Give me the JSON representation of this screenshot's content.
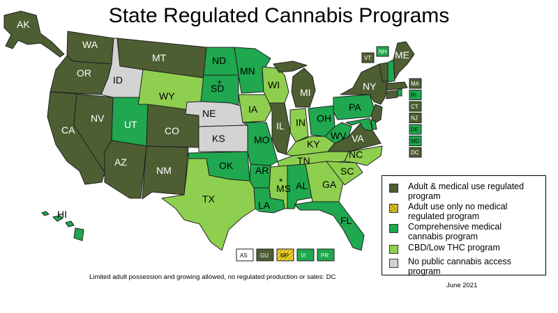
{
  "title": "State Regulated Cannabis Programs",
  "colors": {
    "adult_medical": "#4d5e33",
    "adult_only": "#e6c71e",
    "comprehensive_medical": "#1fa84f",
    "cbd_low_thc": "#8fcf4f",
    "none": "#d3d3d3"
  },
  "legend": [
    {
      "label": "Adult & medical use regulated program",
      "category": "adult_medical"
    },
    {
      "label": "Adult use only no medical regulated program",
      "category": "adult_only"
    },
    {
      "label": "Comprehensive medical cannabis program",
      "category": "comprehensive_medical"
    },
    {
      "label": "CBD/Low THC program",
      "category": "cbd_low_thc"
    },
    {
      "label": "No public cannabis access program",
      "category": "none"
    }
  ],
  "states": [
    {
      "abbr": "AK",
      "category": "adult_medical"
    },
    {
      "abbr": "WA",
      "category": "adult_medical"
    },
    {
      "abbr": "OR",
      "category": "adult_medical"
    },
    {
      "abbr": "CA",
      "category": "adult_medical"
    },
    {
      "abbr": "NV",
      "category": "adult_medical"
    },
    {
      "abbr": "ID",
      "category": "none"
    },
    {
      "abbr": "MT",
      "category": "adult_medical"
    },
    {
      "abbr": "WY",
      "category": "cbd_low_thc"
    },
    {
      "abbr": "UT",
      "category": "comprehensive_medical"
    },
    {
      "abbr": "CO",
      "category": "adult_medical"
    },
    {
      "abbr": "AZ",
      "category": "adult_medical"
    },
    {
      "abbr": "NM",
      "category": "adult_medical"
    },
    {
      "abbr": "ND",
      "category": "comprehensive_medical"
    },
    {
      "abbr": "SD",
      "category": "comprehensive_medical"
    },
    {
      "abbr": "NE",
      "category": "none"
    },
    {
      "abbr": "KS",
      "category": "none"
    },
    {
      "abbr": "OK",
      "category": "comprehensive_medical"
    },
    {
      "abbr": "TX",
      "category": "cbd_low_thc"
    },
    {
      "abbr": "MN",
      "category": "comprehensive_medical"
    },
    {
      "abbr": "IA",
      "category": "cbd_low_thc"
    },
    {
      "abbr": "MO",
      "category": "comprehensive_medical"
    },
    {
      "abbr": "AR",
      "category": "comprehensive_medical"
    },
    {
      "abbr": "LA",
      "category": "comprehensive_medical"
    },
    {
      "abbr": "WI",
      "category": "cbd_low_thc"
    },
    {
      "abbr": "IL",
      "category": "adult_medical"
    },
    {
      "abbr": "MI",
      "category": "adult_medical"
    },
    {
      "abbr": "IN",
      "category": "cbd_low_thc"
    },
    {
      "abbr": "OH",
      "category": "comprehensive_medical"
    },
    {
      "abbr": "KY",
      "category": "cbd_low_thc"
    },
    {
      "abbr": "TN",
      "category": "cbd_low_thc"
    },
    {
      "abbr": "MS",
      "category": "cbd_low_thc"
    },
    {
      "abbr": "AL",
      "category": "comprehensive_medical"
    },
    {
      "abbr": "GA",
      "category": "cbd_low_thc"
    },
    {
      "abbr": "FL",
      "category": "comprehensive_medical"
    },
    {
      "abbr": "SC",
      "category": "cbd_low_thc"
    },
    {
      "abbr": "NC",
      "category": "cbd_low_thc"
    },
    {
      "abbr": "VA",
      "category": "adult_medical"
    },
    {
      "abbr": "WV",
      "category": "comprehensive_medical"
    },
    {
      "abbr": "PA",
      "category": "comprehensive_medical"
    },
    {
      "abbr": "NY",
      "category": "adult_medical"
    },
    {
      "abbr": "VT",
      "category": "adult_medical"
    },
    {
      "abbr": "NH",
      "category": "comprehensive_medical"
    },
    {
      "abbr": "ME",
      "category": "adult_medical"
    },
    {
      "abbr": "HI",
      "category": "comprehensive_medical"
    }
  ],
  "asterisk_states": [
    "SD",
    "MS"
  ],
  "northeast_boxes": [
    {
      "abbr": "MA",
      "category": "adult_medical"
    },
    {
      "abbr": "RI",
      "category": "comprehensive_medical"
    },
    {
      "abbr": "CT",
      "category": "adult_medical"
    },
    {
      "abbr": "NJ",
      "category": "adult_medical"
    },
    {
      "abbr": "DE",
      "category": "comprehensive_medical"
    },
    {
      "abbr": "MD",
      "category": "comprehensive_medical"
    },
    {
      "abbr": "DC",
      "category": "adult_medical"
    }
  ],
  "territories": [
    {
      "abbr": "AS",
      "category": "none_white"
    },
    {
      "abbr": "GU",
      "category": "adult_medical"
    },
    {
      "abbr": "MP",
      "category": "adult_only"
    },
    {
      "abbr": "VI",
      "category": "comprehensive_medical"
    },
    {
      "abbr": "PR",
      "category": "comprehensive_medical"
    }
  ],
  "footnote": "Limited adult possession and growing allowed, no regulated production or sales: DC",
  "date": "June 2021"
}
